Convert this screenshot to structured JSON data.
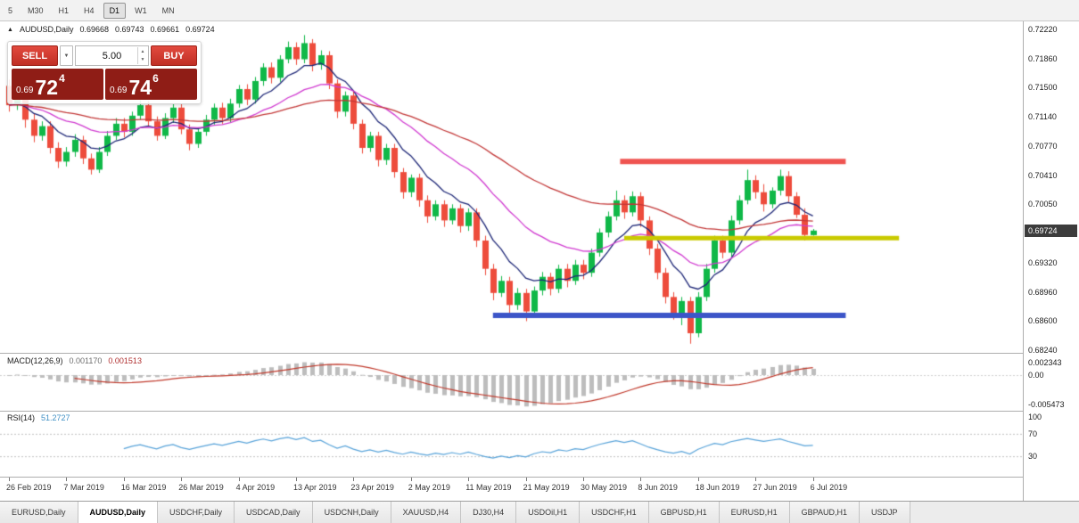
{
  "toolbar": {
    "timeframes": [
      "5",
      "M30",
      "H1",
      "H4",
      "D1",
      "W1",
      "MN"
    ],
    "active_timeframe": "D1"
  },
  "header": {
    "marker": "▲",
    "symbol": "AUDUSD,Daily",
    "open": "0.69668",
    "high": "0.69743",
    "low": "0.69661",
    "close": "0.69724"
  },
  "trade_panel": {
    "sell_label": "SELL",
    "buy_label": "BUY",
    "lot_value": "5.00",
    "sell_price": {
      "prefix": "0.69",
      "big": "72",
      "sup": "4"
    },
    "buy_price": {
      "prefix": "0.69",
      "big": "74",
      "sup": "6"
    }
  },
  "price_scale": {
    "labels": [
      {
        "text": "0.72220",
        "value": 0.7222
      },
      {
        "text": "0.71860",
        "value": 0.7186
      },
      {
        "text": "0.71500",
        "value": 0.715
      },
      {
        "text": "0.71140",
        "value": 0.7114
      },
      {
        "text": "0.70770",
        "value": 0.7077
      },
      {
        "text": "0.70410",
        "value": 0.7041
      },
      {
        "text": "0.70050",
        "value": 0.7005
      },
      {
        "text": "0.69320",
        "value": 0.6932
      },
      {
        "text": "0.68960",
        "value": 0.6896
      },
      {
        "text": "0.68600",
        "value": 0.686
      },
      {
        "text": "0.68240",
        "value": 0.6824
      }
    ],
    "current": {
      "text": "0.69724",
      "value": 0.69724
    }
  },
  "indicators": {
    "macd": {
      "label": "MACD(12,26,9)",
      "value_main": "0.001170",
      "value_signal": "0.001513",
      "params": {
        "fast": 12,
        "slow": 26,
        "signal": 9
      },
      "scale_labels": [
        {
          "text": "0.002343",
          "value": 0.002343
        },
        {
          "text": "0.00",
          "value": 0
        },
        {
          "text": "-0.005473",
          "value": -0.005473
        }
      ],
      "bar_color": "#bdbdbd",
      "signal_color": "#c0392b"
    },
    "rsi": {
      "label": "RSI(14)",
      "value": "51.2727",
      "period": 14,
      "scale_labels": [
        {
          "text": "100",
          "value": 100
        },
        {
          "text": "70",
          "value": 70
        },
        {
          "text": "30",
          "value": 30
        }
      ],
      "levels": [
        70,
        30
      ],
      "line_color": "#58a3d9"
    }
  },
  "chart_data": {
    "type": "candlestick",
    "symbol": "AUDUSD",
    "timeframe": "Daily",
    "up_color": "#10b848",
    "down_color": "#ed4c3c",
    "y_range": [
      0.68207,
      0.7232
    ],
    "current_price": 0.69724,
    "ohlc": [
      [
        0.7152,
        0.716,
        0.712,
        0.7128
      ],
      [
        0.7128,
        0.7148,
        0.7122,
        0.714
      ],
      [
        0.714,
        0.7146,
        0.71,
        0.711
      ],
      [
        0.711,
        0.7118,
        0.7082,
        0.709
      ],
      [
        0.709,
        0.7108,
        0.7084,
        0.7102
      ],
      [
        0.7102,
        0.7108,
        0.7068,
        0.7075
      ],
      [
        0.7075,
        0.7082,
        0.705,
        0.7058
      ],
      [
        0.7058,
        0.7076,
        0.7052,
        0.707
      ],
      [
        0.707,
        0.7092,
        0.7064,
        0.7085
      ],
      [
        0.7085,
        0.709,
        0.7055,
        0.7062
      ],
      [
        0.7062,
        0.7068,
        0.7042,
        0.7048
      ],
      [
        0.7048,
        0.7076,
        0.7044,
        0.707
      ],
      [
        0.707,
        0.7096,
        0.7065,
        0.709
      ],
      [
        0.709,
        0.7112,
        0.7085,
        0.7105
      ],
      [
        0.7105,
        0.7112,
        0.7088,
        0.7095
      ],
      [
        0.7095,
        0.712,
        0.709,
        0.7115
      ],
      [
        0.7115,
        0.7134,
        0.711,
        0.7128
      ],
      [
        0.7128,
        0.7133,
        0.7102,
        0.7108
      ],
      [
        0.7108,
        0.7114,
        0.7084,
        0.709
      ],
      [
        0.709,
        0.7118,
        0.7086,
        0.7112
      ],
      [
        0.7112,
        0.713,
        0.7106,
        0.7125
      ],
      [
        0.7125,
        0.713,
        0.7092,
        0.7098
      ],
      [
        0.7098,
        0.7104,
        0.7072,
        0.708
      ],
      [
        0.708,
        0.71,
        0.7075,
        0.7095
      ],
      [
        0.7095,
        0.7116,
        0.709,
        0.711
      ],
      [
        0.711,
        0.713,
        0.7104,
        0.7125
      ],
      [
        0.7125,
        0.7131,
        0.7105,
        0.7112
      ],
      [
        0.7112,
        0.7136,
        0.7107,
        0.713
      ],
      [
        0.713,
        0.7153,
        0.7125,
        0.7148
      ],
      [
        0.7148,
        0.7154,
        0.7128,
        0.7135
      ],
      [
        0.7135,
        0.7163,
        0.713,
        0.7158
      ],
      [
        0.7158,
        0.718,
        0.7152,
        0.7175
      ],
      [
        0.7175,
        0.7181,
        0.7155,
        0.7162
      ],
      [
        0.7162,
        0.719,
        0.7157,
        0.7185
      ],
      [
        0.7185,
        0.7207,
        0.718,
        0.72
      ],
      [
        0.72,
        0.7206,
        0.7178,
        0.7185
      ],
      [
        0.7185,
        0.7215,
        0.718,
        0.7205
      ],
      [
        0.7205,
        0.721,
        0.717,
        0.7178
      ],
      [
        0.7178,
        0.7196,
        0.7172,
        0.719
      ],
      [
        0.719,
        0.7195,
        0.7148,
        0.7155
      ],
      [
        0.7155,
        0.716,
        0.7112,
        0.712
      ],
      [
        0.712,
        0.7145,
        0.7114,
        0.714
      ],
      [
        0.714,
        0.7146,
        0.7098,
        0.7105
      ],
      [
        0.7105,
        0.711,
        0.7068,
        0.7075
      ],
      [
        0.7075,
        0.7095,
        0.707,
        0.709
      ],
      [
        0.709,
        0.7095,
        0.7052,
        0.706
      ],
      [
        0.706,
        0.708,
        0.7054,
        0.7075
      ],
      [
        0.7075,
        0.708,
        0.7038,
        0.7045
      ],
      [
        0.7045,
        0.705,
        0.7012,
        0.702
      ],
      [
        0.702,
        0.7042,
        0.7014,
        0.7038
      ],
      [
        0.7038,
        0.7043,
        0.7002,
        0.701
      ],
      [
        0.701,
        0.7016,
        0.6982,
        0.699
      ],
      [
        0.699,
        0.701,
        0.6985,
        0.7005
      ],
      [
        0.7005,
        0.701,
        0.6977,
        0.6985
      ],
      [
        0.6985,
        0.7005,
        0.698,
        0.7
      ],
      [
        0.7,
        0.7005,
        0.697,
        0.6978
      ],
      [
        0.6978,
        0.7,
        0.6972,
        0.6995
      ],
      [
        0.6995,
        0.7,
        0.6952,
        0.696
      ],
      [
        0.696,
        0.6966,
        0.6917,
        0.6925
      ],
      [
        0.6925,
        0.6931,
        0.6886,
        0.6895
      ],
      [
        0.6895,
        0.6916,
        0.689,
        0.691
      ],
      [
        0.691,
        0.6915,
        0.6865,
        0.688
      ],
      [
        0.688,
        0.6901,
        0.6874,
        0.6895
      ],
      [
        0.6895,
        0.69,
        0.686,
        0.6872
      ],
      [
        0.6872,
        0.6903,
        0.6866,
        0.6898
      ],
      [
        0.6898,
        0.6921,
        0.6892,
        0.6915
      ],
      [
        0.6915,
        0.692,
        0.6892,
        0.69
      ],
      [
        0.69,
        0.693,
        0.6895,
        0.6925
      ],
      [
        0.6925,
        0.6931,
        0.6902,
        0.691
      ],
      [
        0.691,
        0.6936,
        0.6905,
        0.693
      ],
      [
        0.693,
        0.6936,
        0.6912,
        0.692
      ],
      [
        0.692,
        0.695,
        0.6915,
        0.6945
      ],
      [
        0.6945,
        0.6975,
        0.694,
        0.697
      ],
      [
        0.697,
        0.6996,
        0.6964,
        0.699
      ],
      [
        0.699,
        0.7022,
        0.6985,
        0.701
      ],
      [
        0.701,
        0.7016,
        0.6987,
        0.6995
      ],
      [
        0.6995,
        0.7021,
        0.699,
        0.7015
      ],
      [
        0.7015,
        0.702,
        0.6977,
        0.6985
      ],
      [
        0.6985,
        0.699,
        0.6942,
        0.695
      ],
      [
        0.695,
        0.6956,
        0.6912,
        0.692
      ],
      [
        0.692,
        0.6926,
        0.6882,
        0.689
      ],
      [
        0.689,
        0.6896,
        0.6862,
        0.687
      ],
      [
        0.687,
        0.689,
        0.6855,
        0.6885
      ],
      [
        0.6885,
        0.689,
        0.6832,
        0.6845
      ],
      [
        0.6845,
        0.6896,
        0.684,
        0.689
      ],
      [
        0.689,
        0.6931,
        0.6885,
        0.6925
      ],
      [
        0.6925,
        0.6966,
        0.692,
        0.696
      ],
      [
        0.696,
        0.6966,
        0.6938,
        0.6945
      ],
      [
        0.6945,
        0.6991,
        0.694,
        0.6985
      ],
      [
        0.6985,
        0.7016,
        0.698,
        0.701
      ],
      [
        0.701,
        0.7048,
        0.7005,
        0.7035
      ],
      [
        0.7035,
        0.7041,
        0.7012,
        0.702
      ],
      [
        0.702,
        0.703,
        0.6996,
        0.7005
      ],
      [
        0.7005,
        0.7026,
        0.7,
        0.7022
      ],
      [
        0.7022,
        0.7048,
        0.7016,
        0.704
      ],
      [
        0.704,
        0.7046,
        0.7008,
        0.7015
      ],
      [
        0.7015,
        0.702,
        0.6988,
        0.6992
      ],
      [
        0.6992,
        0.7,
        0.696,
        0.6967
      ],
      [
        0.69668,
        0.69743,
        0.69661,
        0.69724
      ]
    ],
    "date_labels": [
      "26 Feb 2019",
      "7 Mar 2019",
      "16 Mar 2019",
      "26 Mar 2019",
      "4 Apr 2019",
      "13 Apr 2019",
      "23 Apr 2019",
      "2 May 2019",
      "11 May 2019",
      "21 May 2019",
      "30 May 2019",
      "8 Jun 2019",
      "18 Jun 2019",
      "27 Jun 2019",
      "6 Jul 2019"
    ],
    "date_label_indices": [
      0,
      7,
      14,
      21,
      28,
      35,
      42,
      49,
      56,
      63,
      70,
      77,
      84,
      91,
      98
    ],
    "moving_averages": [
      {
        "name": "ma-fast",
        "period": 8,
        "color": "#1d2676"
      },
      {
        "name": "ma-mid",
        "period": 21,
        "color": "#d03ad0"
      },
      {
        "name": "ma-slow",
        "period": 50,
        "color": "#c23636"
      }
    ],
    "hlines": [
      {
        "name": "resistance-line",
        "price": 0.7058,
        "color": "#ef5350",
        "width": 6,
        "i1": 74.5,
        "i2": 102
      },
      {
        "name": "mid-level-line",
        "price": 0.6963,
        "color": "#c9ca00",
        "width": 5,
        "i1": 75,
        "i2": 108.5
      },
      {
        "name": "support-line",
        "price": 0.6867,
        "color": "#3c55c8",
        "width": 6,
        "i1": 59,
        "i2": 102
      }
    ]
  },
  "tabs": {
    "items": [
      "EURUSD,Daily",
      "AUDUSD,Daily",
      "USDCHF,Daily",
      "USDCAD,Daily",
      "USDCNH,Daily",
      "XAUUSD,H4",
      "DJ30,H4",
      "USDOil,H1",
      "USDCHF,H1",
      "GBPUSD,H1",
      "EURUSD,H1",
      "GBPAUD,H1",
      "USDJP"
    ],
    "active_index": 1
  }
}
